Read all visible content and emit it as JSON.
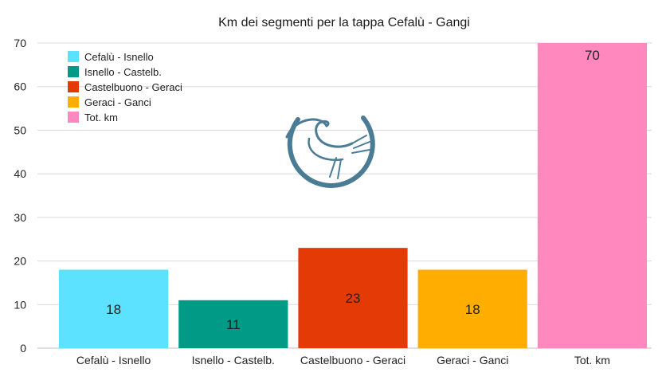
{
  "chart_data": {
    "type": "bar",
    "title": "Km dei segmenti per la tappa Cefalù - Gangi",
    "categories": [
      "Cefalù - Isnello",
      "Isnello - Castelb.",
      "Castelbuono - Geraci",
      "Geraci - Ganci",
      "Tot. km"
    ],
    "values": [
      18,
      11,
      23,
      18,
      70
    ],
    "colors": [
      "#5ce1ff",
      "#009a87",
      "#e33a06",
      "#ffae00",
      "#ff88bf"
    ],
    "ylim": [
      0,
      70
    ],
    "yticks": [
      0,
      10,
      20,
      30,
      40,
      50,
      60,
      70
    ],
    "grid": true,
    "legend": {
      "position": "top-left",
      "entries": [
        "Cefalù - Isnello",
        "Isnello - Castelb.",
        "Castelbuono - Geraci",
        "Geraci - Ganci",
        "Tot. km"
      ]
    },
    "data_labels": true
  },
  "watermark": {
    "icon": "heron-logo-icon",
    "color": "#4a7c95"
  }
}
